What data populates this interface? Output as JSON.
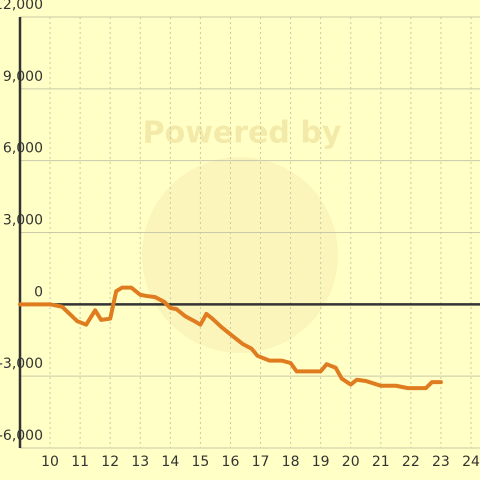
{
  "chart_data": {
    "type": "line",
    "watermark": "Powered by",
    "x": [
      9,
      10,
      10.4,
      10.9,
      11.2,
      11.5,
      11.7,
      12,
      12.2,
      12.4,
      12.7,
      13,
      13.2,
      13.5,
      13.8,
      14,
      14.2,
      14.5,
      14.8,
      15,
      15.2,
      15.4,
      15.7,
      16,
      16.4,
      16.7,
      16.9,
      17.3,
      17.7,
      18,
      18.2,
      18.6,
      19,
      19.2,
      19.5,
      19.7,
      20,
      20.2,
      20.5,
      21,
      21.5,
      21.9,
      22.5,
      22.7,
      23
    ],
    "series": [
      {
        "color": "#e07c20",
        "values": [
          0,
          0,
          -100,
          -700,
          -850,
          -250,
          -650,
          -600,
          550,
          700,
          700,
          400,
          350,
          300,
          100,
          -150,
          -200,
          -500,
          -700,
          -850,
          -400,
          -600,
          -950,
          -1250,
          -1650,
          -1850,
          -2150,
          -2350,
          -2350,
          -2450,
          -2800,
          -2800,
          -2800,
          -2500,
          -2650,
          -3100,
          -3350,
          -3150,
          -3200,
          -3400,
          -3400,
          -3500,
          -3500,
          -3250,
          -3250
        ]
      }
    ],
    "xlim": [
      9,
      24.3
    ],
    "xticks": [
      10,
      11,
      12,
      13,
      14,
      15,
      16,
      17,
      18,
      19,
      20,
      21,
      22,
      23,
      24
    ],
    "ylim": [
      -6000,
      12000
    ],
    "yticks": [
      {
        "value": -6000,
        "label": "-6,000"
      },
      {
        "value": -3000,
        "label": "-3,000"
      },
      0,
      {
        "value": 3000,
        "label": "3,000"
      },
      {
        "value": 6000,
        "label": "6,000"
      },
      {
        "value": 9000,
        "label": "9,000"
      },
      {
        "value": 12000,
        "label": "12,000"
      }
    ],
    "grid": true
  }
}
